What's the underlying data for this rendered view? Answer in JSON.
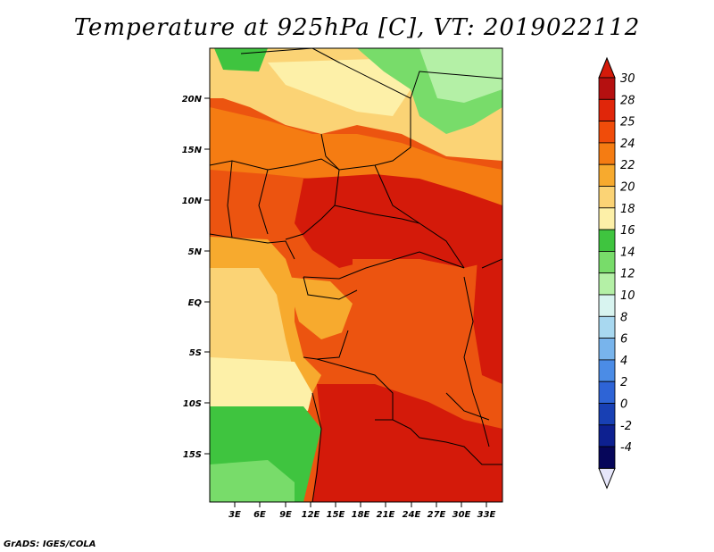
{
  "title": "Temperature at 925hPa [C], VT: 2019022112",
  "credit": "GrADS: IGES/COLA",
  "lat_ticks": [
    "20N",
    "15N",
    "10N",
    "5N",
    "EQ",
    "5S",
    "10S",
    "15S"
  ],
  "lon_ticks": [
    "3E",
    "6E",
    "9E",
    "12E",
    "15E",
    "18E",
    "21E",
    "24E",
    "27E",
    "30E",
    "33E"
  ],
  "colorbar": {
    "labels": [
      "30",
      "28",
      "25",
      "24",
      "22",
      "20",
      "18",
      "16",
      "14",
      "12",
      "10",
      "8",
      "6",
      "4",
      "2",
      "0",
      "-2",
      "-4"
    ],
    "colors": [
      "#b51010",
      "#e0260a",
      "#f04c0a",
      "#f57c12",
      "#f7aa2e",
      "#fbd375",
      "#fdf0a8",
      "#3fc43f",
      "#78dc6a",
      "#b4f0a6",
      "#d8f4f0",
      "#a8d8f0",
      "#78b4ec",
      "#4b8ce6",
      "#2e64d6",
      "#1840b4",
      "#0d2090",
      "#06065a"
    ],
    "top_color": "#d41a0a",
    "bottom_color": "#e6e6fa"
  },
  "colors": {
    "hot": "#d41a0a",
    "warm": "#ec5410",
    "orange": "#f57c12",
    "amber": "#f7aa2e",
    "sand": "#fbd375",
    "pale": "#fdf0a8",
    "green": "#3fc43f",
    "lightgreen": "#78dc6a",
    "palegreen": "#b4f0a6"
  }
}
